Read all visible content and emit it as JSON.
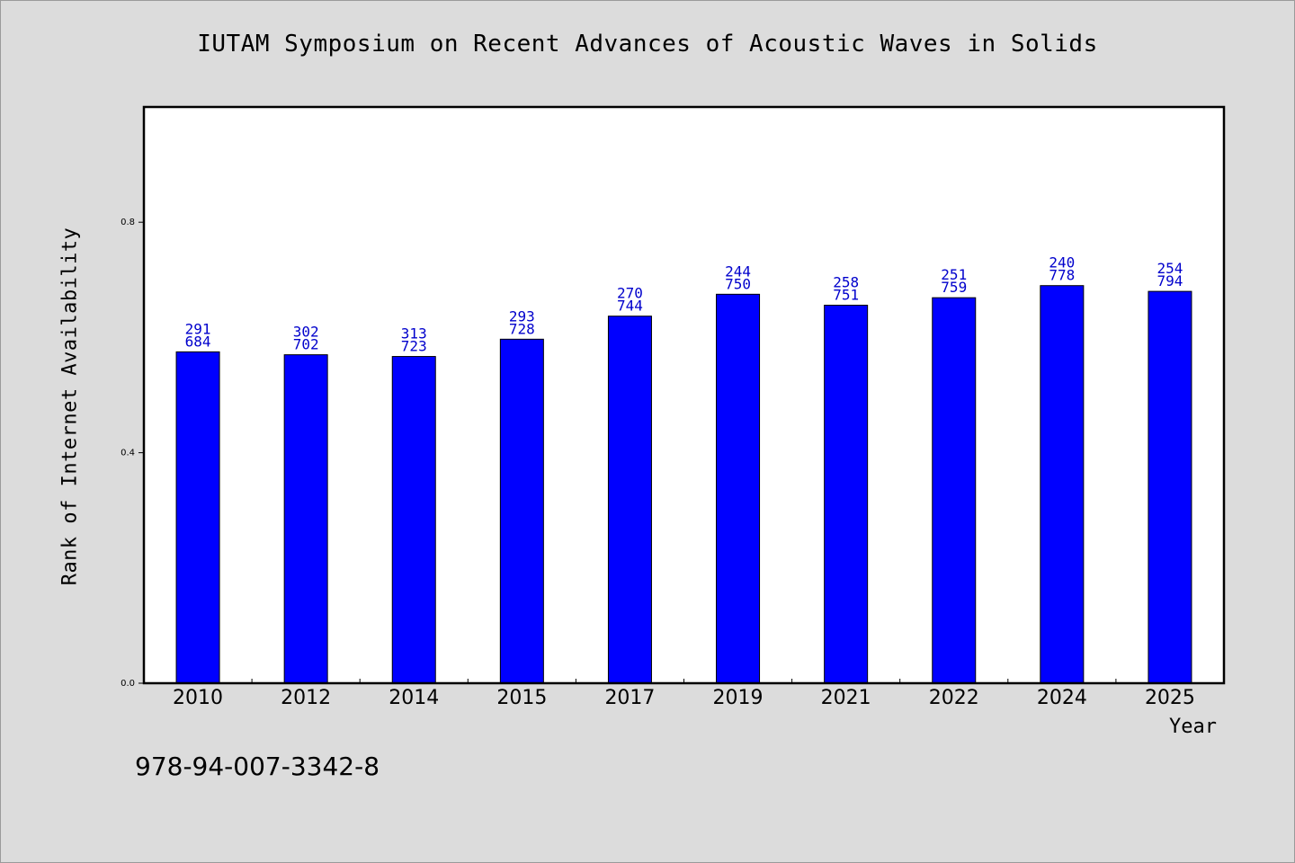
{
  "chart_data": {
    "type": "bar",
    "title": "IUTAM Symposium on Recent Advances of Acoustic Waves in Solids",
    "xlabel": "Year",
    "ylabel": "Rank of Internet Availability",
    "categories": [
      "2010",
      "2012",
      "2014",
      "2015",
      "2017",
      "2019",
      "2021",
      "2022",
      "2024",
      "2025"
    ],
    "values": [
      0.575,
      0.57,
      0.567,
      0.597,
      0.637,
      0.675,
      0.656,
      0.669,
      0.69,
      0.68
    ],
    "label_top": [
      "291",
      "302",
      "313",
      "293",
      "270",
      "244",
      "258",
      "251",
      "240",
      "254"
    ],
    "label_bottom": [
      "684",
      "702",
      "723",
      "728",
      "744",
      "750",
      "751",
      "759",
      "778",
      "794"
    ],
    "ylim": [
      0,
      1.0
    ],
    "yticks": [
      0.0,
      0.4,
      0.8
    ],
    "ytick_labels": [
      "0.0",
      "0.4",
      "0.8"
    ],
    "grid": false,
    "legend": "none",
    "bar_color": "#0000ff",
    "label_color": "#0000cc"
  },
  "footer_code": "978-94-007-3342-8"
}
